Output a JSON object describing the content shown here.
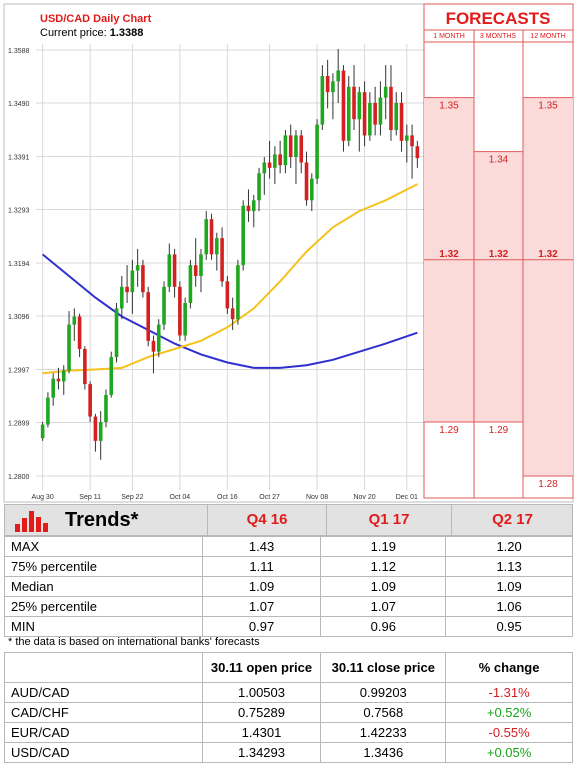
{
  "header": {
    "title": "USD/CAD Daily Chart",
    "price_label": "Current price:",
    "price_value": "1.3388"
  },
  "forecasts": {
    "title": "FORECASTS",
    "columns": [
      "1 MONTH",
      "3 MONTHS",
      "12 MONTH"
    ],
    "values": [
      [
        "1.35",
        "1.32",
        "1.29"
      ],
      [
        "1.34",
        "1.32",
        "1.29"
      ],
      [
        "1.35",
        "1.32",
        "1.28"
      ]
    ]
  },
  "chart_data": {
    "type": "candlestick",
    "ylim": [
      1.28,
      1.3588
    ],
    "yticks": [
      1.3588,
      1.349,
      1.3391,
      1.3293,
      1.3194,
      1.3096,
      1.2997,
      1.2899,
      1.28
    ],
    "ytick_labels": [
      "1.3588",
      "1.3490",
      "1.3391",
      "1.3293",
      "1.3194",
      "1.3096",
      "1.2997",
      "1.2899",
      "1.2800"
    ],
    "xtick_labels": [
      "Aug 30",
      "Sep 11",
      "Sep 22",
      "Oct 04",
      "Oct 16",
      "Oct 27",
      "Nov 08",
      "Nov 20",
      "Dec 01"
    ],
    "xtick_index": [
      0,
      9,
      17,
      26,
      35,
      43,
      52,
      61,
      69
    ],
    "n": 72,
    "candles": [
      [
        1.287,
        1.29,
        1.2865,
        1.2895
      ],
      [
        1.2895,
        1.2955,
        1.289,
        1.2945
      ],
      [
        1.2945,
        1.299,
        1.293,
        1.298
      ],
      [
        1.298,
        1.3,
        1.296,
        1.2975
      ],
      [
        1.2975,
        1.3005,
        1.295,
        1.2995
      ],
      [
        1.2995,
        1.3105,
        1.299,
        1.308
      ],
      [
        1.308,
        1.311,
        1.305,
        1.3095
      ],
      [
        1.3095,
        1.31,
        1.302,
        1.3035
      ],
      [
        1.3035,
        1.304,
        1.296,
        1.297
      ],
      [
        1.297,
        1.2975,
        1.29,
        1.291
      ],
      [
        1.291,
        1.2915,
        1.2845,
        1.2865
      ],
      [
        1.2865,
        1.292,
        1.283,
        1.29
      ],
      [
        1.29,
        1.296,
        1.289,
        1.295
      ],
      [
        1.295,
        1.303,
        1.2945,
        1.302
      ],
      [
        1.302,
        1.312,
        1.301,
        1.311
      ],
      [
        1.311,
        1.317,
        1.309,
        1.315
      ],
      [
        1.315,
        1.319,
        1.312,
        1.314
      ],
      [
        1.314,
        1.32,
        1.31,
        1.318
      ],
      [
        1.318,
        1.322,
        1.315,
        1.319
      ],
      [
        1.319,
        1.32,
        1.313,
        1.314
      ],
      [
        1.314,
        1.315,
        1.304,
        1.305
      ],
      [
        1.305,
        1.306,
        1.299,
        1.303
      ],
      [
        1.303,
        1.309,
        1.302,
        1.308
      ],
      [
        1.308,
        1.316,
        1.307,
        1.315
      ],
      [
        1.315,
        1.323,
        1.314,
        1.321
      ],
      [
        1.321,
        1.322,
        1.313,
        1.315
      ],
      [
        1.315,
        1.316,
        1.305,
        1.306
      ],
      [
        1.306,
        1.313,
        1.305,
        1.312
      ],
      [
        1.312,
        1.32,
        1.311,
        1.319
      ],
      [
        1.319,
        1.324,
        1.315,
        1.317
      ],
      [
        1.317,
        1.322,
        1.314,
        1.321
      ],
      [
        1.321,
        1.329,
        1.32,
        1.3275
      ],
      [
        1.3275,
        1.3285,
        1.32,
        1.321
      ],
      [
        1.321,
        1.325,
        1.318,
        1.324
      ],
      [
        1.324,
        1.326,
        1.315,
        1.316
      ],
      [
        1.316,
        1.317,
        1.31,
        1.311
      ],
      [
        1.311,
        1.313,
        1.307,
        1.309
      ],
      [
        1.309,
        1.32,
        1.308,
        1.319
      ],
      [
        1.319,
        1.331,
        1.318,
        1.33
      ],
      [
        1.33,
        1.333,
        1.327,
        1.329
      ],
      [
        1.329,
        1.332,
        1.326,
        1.331
      ],
      [
        1.331,
        1.337,
        1.329,
        1.336
      ],
      [
        1.336,
        1.339,
        1.332,
        1.338
      ],
      [
        1.338,
        1.342,
        1.335,
        1.337
      ],
      [
        1.337,
        1.341,
        1.334,
        1.3395
      ],
      [
        1.3395,
        1.342,
        1.336,
        1.3375
      ],
      [
        1.3375,
        1.344,
        1.336,
        1.343
      ],
      [
        1.343,
        1.345,
        1.337,
        1.339
      ],
      [
        1.339,
        1.344,
        1.334,
        1.343
      ],
      [
        1.343,
        1.344,
        1.336,
        1.338
      ],
      [
        1.338,
        1.34,
        1.33,
        1.331
      ],
      [
        1.331,
        1.336,
        1.329,
        1.335
      ],
      [
        1.335,
        1.346,
        1.334,
        1.345
      ],
      [
        1.345,
        1.356,
        1.344,
        1.354
      ],
      [
        1.354,
        1.357,
        1.348,
        1.351
      ],
      [
        1.351,
        1.3545,
        1.346,
        1.353
      ],
      [
        1.353,
        1.359,
        1.349,
        1.355
      ],
      [
        1.355,
        1.356,
        1.34,
        1.342
      ],
      [
        1.342,
        1.354,
        1.341,
        1.352
      ],
      [
        1.352,
        1.356,
        1.344,
        1.346
      ],
      [
        1.346,
        1.352,
        1.34,
        1.351
      ],
      [
        1.351,
        1.353,
        1.341,
        1.343
      ],
      [
        1.343,
        1.351,
        1.342,
        1.349
      ],
      [
        1.349,
        1.352,
        1.343,
        1.345
      ],
      [
        1.345,
        1.353,
        1.343,
        1.35
      ],
      [
        1.35,
        1.356,
        1.346,
        1.352
      ],
      [
        1.352,
        1.356,
        1.342,
        1.344
      ],
      [
        1.344,
        1.351,
        1.343,
        1.349
      ],
      [
        1.349,
        1.351,
        1.34,
        1.342
      ],
      [
        1.342,
        1.345,
        1.338,
        1.343
      ],
      [
        1.343,
        1.345,
        1.335,
        1.341
      ],
      [
        1.341,
        1.342,
        1.337,
        1.3388
      ]
    ],
    "series": [
      {
        "color": "#2f2fd0",
        "points": [
          [
            0,
            1.321
          ],
          [
            5,
            1.317
          ],
          [
            10,
            1.313
          ],
          [
            15,
            1.3095
          ],
          [
            20,
            1.307
          ],
          [
            25,
            1.3045
          ],
          [
            30,
            1.3025
          ],
          [
            35,
            1.301
          ],
          [
            40,
            1.3
          ],
          [
            45,
            1.3
          ],
          [
            50,
            1.3005
          ],
          [
            55,
            1.3015
          ],
          [
            60,
            1.303
          ],
          [
            65,
            1.3045
          ],
          [
            71,
            1.3065
          ]
        ]
      },
      {
        "color": "#f5c21c",
        "points": [
          [
            0,
            1.299
          ],
          [
            5,
            1.2995
          ],
          [
            10,
            1.2997
          ],
          [
            15,
            1.3
          ],
          [
            20,
            1.302
          ],
          [
            25,
            1.3035
          ],
          [
            30,
            1.305
          ],
          [
            35,
            1.3075
          ],
          [
            40,
            1.311
          ],
          [
            45,
            1.316
          ],
          [
            50,
            1.3215
          ],
          [
            55,
            1.326
          ],
          [
            60,
            1.329
          ],
          [
            65,
            1.331
          ],
          [
            71,
            1.334
          ]
        ]
      }
    ]
  },
  "trends": {
    "title": "Trends*",
    "columns": [
      "Q4 16",
      "Q1 17",
      "Q2 17"
    ],
    "rows": [
      {
        "label": "MAX",
        "values": [
          "1.43",
          "1.19",
          "1.20"
        ]
      },
      {
        "label": "75% percentile",
        "values": [
          "1.11",
          "1.12",
          "1.13"
        ]
      },
      {
        "label": "Median",
        "values": [
          "1.09",
          "1.09",
          "1.09"
        ]
      },
      {
        "label": "25% percentile",
        "values": [
          "1.07",
          "1.07",
          "1.06"
        ]
      },
      {
        "label": "MIN",
        "values": [
          "0.97",
          "0.96",
          "0.95"
        ]
      }
    ],
    "footnote": "* the data is based on international banks' forecasts"
  },
  "rates": {
    "columns": [
      "30.11 open price",
      "30.11 close price",
      "% change"
    ],
    "rows": [
      {
        "pair": "AUD/CAD",
        "open": "1.00503",
        "close": "0.99203",
        "change": "-1.31%"
      },
      {
        "pair": "CAD/CHF",
        "open": "0.75289",
        "close": "0.7568",
        "change": "+0.52%"
      },
      {
        "pair": "EUR/CAD",
        "open": "1.4301",
        "close": "1.42233",
        "change": "-0.55%"
      },
      {
        "pair": "USD/CAD",
        "open": "1.34293",
        "close": "1.3436",
        "change": "+0.05%"
      }
    ]
  }
}
